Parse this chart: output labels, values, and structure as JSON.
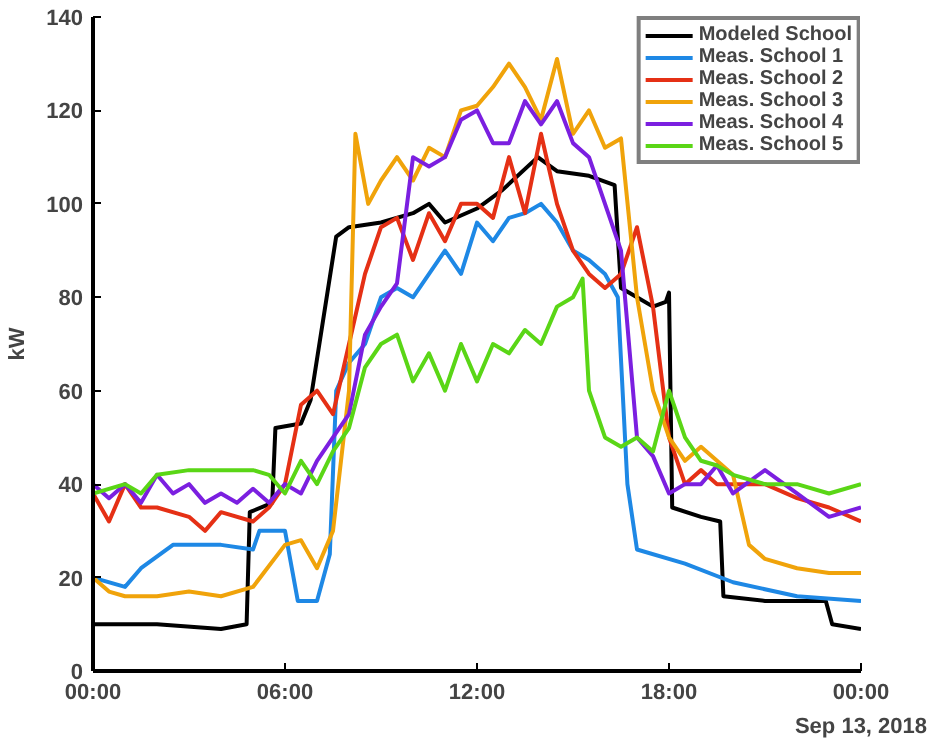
{
  "chart_data": {
    "type": "line",
    "xlabel": "Sep 13, 2018",
    "ylabel": "kW",
    "xlim": [
      0,
      24
    ],
    "xticks": [
      {
        "value": 0,
        "label": "00:00"
      },
      {
        "value": 6,
        "label": "06:00"
      },
      {
        "value": 12,
        "label": "12:00"
      },
      {
        "value": 18,
        "label": "18:00"
      },
      {
        "value": 24,
        "label": "00:00"
      }
    ],
    "ylim": [
      0,
      140
    ],
    "yticks": [
      0,
      20,
      40,
      60,
      80,
      100,
      120,
      140
    ],
    "grid": false,
    "legend": "top right",
    "marker": "none",
    "line_style": "solid",
    "series": [
      {
        "name": "Modeled School",
        "color": "#000000",
        "x": [
          0,
          2,
          4,
          4.8,
          4.9,
          5.6,
          5.7,
          6.5,
          6.8,
          7.6,
          8,
          9,
          10,
          10.5,
          11,
          12,
          12.8,
          13.9,
          14.5,
          15.5,
          16.3,
          16.5,
          17,
          17.5,
          17.9,
          18.0,
          18.1,
          19,
          19.6,
          19.7,
          21,
          22.9,
          23.1,
          24
        ],
        "values": [
          10,
          10,
          9,
          10,
          34,
          36,
          52,
          53,
          58,
          93,
          95,
          96,
          98,
          100,
          96,
          99,
          103,
          110,
          107,
          106,
          104,
          82,
          80,
          78,
          79,
          81,
          35,
          33,
          32,
          16,
          15,
          15,
          10,
          9
        ]
      },
      {
        "name": "Meas. School 1",
        "color": "#1e88e5",
        "x": [
          0,
          1,
          1.5,
          2.5,
          4,
          5,
          5.2,
          6,
          6.4,
          7,
          7.4,
          7.6,
          8,
          8.5,
          9,
          9.5,
          10,
          11,
          11.5,
          12,
          12.5,
          13,
          13.5,
          14,
          14.5,
          15,
          15.5,
          16,
          16.4,
          16.7,
          17,
          18.5,
          20,
          22,
          24
        ],
        "values": [
          20,
          18,
          22,
          27,
          27,
          26,
          30,
          30,
          15,
          15,
          25,
          60,
          66,
          70,
          80,
          82,
          80,
          90,
          85,
          96,
          92,
          97,
          98,
          100,
          96,
          90,
          88,
          85,
          80,
          40,
          26,
          23,
          19,
          16,
          15
        ]
      },
      {
        "name": "Meas. School 2",
        "color": "#e53015",
        "x": [
          0,
          0.5,
          1,
          1.5,
          2,
          3,
          3.5,
          4,
          5,
          5.5,
          6,
          6.5,
          7,
          7.5,
          8,
          8.5,
          9,
          9.5,
          10,
          10.5,
          11,
          11.5,
          12,
          12.5,
          13,
          13.5,
          14,
          14.5,
          15,
          15.5,
          16,
          16.5,
          17,
          17.5,
          18,
          18.5,
          19,
          19.5,
          20,
          21,
          22,
          23,
          24
        ],
        "values": [
          38,
          32,
          40,
          35,
          35,
          33,
          30,
          34,
          32,
          35,
          40,
          57,
          60,
          55,
          70,
          85,
          95,
          97,
          88,
          98,
          92,
          100,
          100,
          97,
          110,
          98,
          115,
          100,
          90,
          85,
          82,
          85,
          95,
          78,
          50,
          40,
          43,
          40,
          40,
          40,
          37,
          35,
          32
        ]
      },
      {
        "name": "Meas. School 3",
        "color": "#f0a30a",
        "x": [
          0,
          0.5,
          1,
          2,
          3,
          4,
          5,
          6,
          6.5,
          7,
          7.5,
          8,
          8.2,
          8.6,
          9,
          9.5,
          10,
          10.5,
          11,
          11.5,
          12,
          12.5,
          13,
          13.5,
          14,
          14.5,
          15,
          15.5,
          16,
          16.5,
          17,
          17.5,
          18,
          18.5,
          19,
          19.5,
          20,
          20.5,
          21,
          22,
          23,
          24
        ],
        "values": [
          20,
          17,
          16,
          16,
          17,
          16,
          18,
          27,
          28,
          22,
          30,
          60,
          115,
          100,
          105,
          110,
          105,
          112,
          110,
          120,
          121,
          125,
          130,
          125,
          118,
          131,
          115,
          120,
          112,
          114,
          80,
          60,
          50,
          45,
          48,
          45,
          42,
          27,
          24,
          22,
          21,
          21
        ]
      },
      {
        "name": "Meas. School 4",
        "color": "#7b1fe0",
        "x": [
          0,
          0.5,
          1,
          1.5,
          2,
          2.5,
          3,
          3.5,
          4,
          4.5,
          5,
          5.5,
          6,
          6.5,
          7,
          7.5,
          8,
          8.5,
          9,
          9.5,
          10,
          10.5,
          11,
          11.5,
          12,
          12.5,
          13,
          13.5,
          14,
          14.5,
          15,
          15.5,
          16,
          16.5,
          17,
          17.5,
          18,
          18.5,
          19,
          19.5,
          20,
          21,
          22,
          23,
          24
        ],
        "values": [
          40,
          37,
          40,
          36,
          42,
          38,
          40,
          36,
          38,
          36,
          39,
          36,
          40,
          38,
          45,
          50,
          55,
          72,
          78,
          83,
          110,
          108,
          110,
          118,
          120,
          113,
          113,
          122,
          117,
          122,
          113,
          110,
          100,
          90,
          50,
          46,
          38,
          40,
          40,
          44,
          38,
          43,
          38,
          33,
          35
        ]
      },
      {
        "name": "Meas. School 5",
        "color": "#5ad616",
        "x": [
          0,
          1,
          1.5,
          2,
          3,
          4,
          5,
          5.5,
          6,
          6.5,
          7,
          7.5,
          8,
          8.5,
          9,
          9.5,
          10,
          10.5,
          11,
          11.5,
          12,
          12.5,
          13,
          13.5,
          14,
          14.5,
          15,
          15.3,
          15.5,
          16,
          16.5,
          17,
          17.5,
          18,
          18.5,
          19,
          19.5,
          20,
          21,
          22,
          23,
          24
        ],
        "values": [
          38,
          40,
          38,
          42,
          43,
          43,
          43,
          42,
          38,
          45,
          40,
          47,
          52,
          65,
          70,
          72,
          62,
          68,
          60,
          70,
          62,
          70,
          68,
          73,
          70,
          78,
          80,
          84,
          60,
          50,
          48,
          50,
          47,
          60,
          50,
          45,
          44,
          42,
          40,
          40,
          38,
          40
        ]
      }
    ]
  }
}
